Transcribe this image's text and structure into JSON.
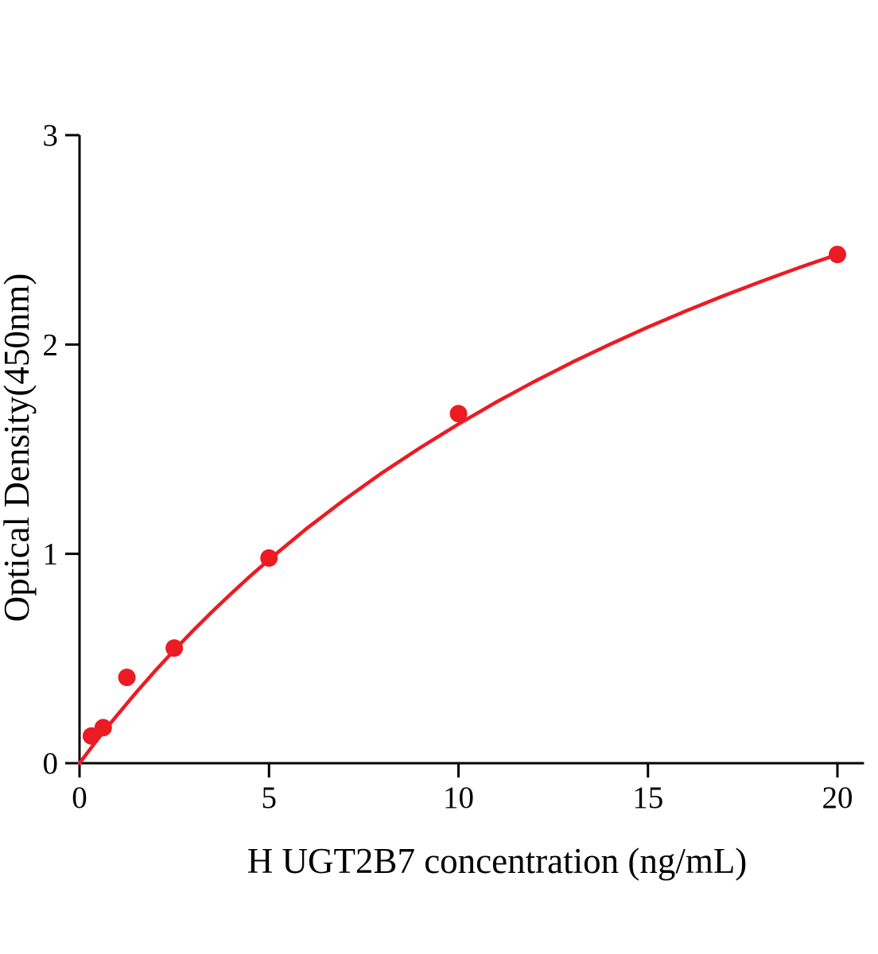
{
  "page": {
    "background": "#ffffff",
    "axis_color": "#000000",
    "accent_color": "#ec1b23"
  },
  "chart_data": {
    "type": "scatter",
    "title": "",
    "xlabel": "H UGT2B7 concentration (ng/mL)",
    "ylabel": "Optical Density(450nm)",
    "xlim": [
      0,
      20.7
    ],
    "ylim": [
      0,
      3
    ],
    "x_ticks": [
      0,
      5,
      10,
      15,
      20
    ],
    "y_ticks": [
      0,
      1,
      2,
      3
    ],
    "grid": false,
    "legend": "none",
    "series": [
      {
        "name": "fitted standard curve",
        "type": "line",
        "color": "#ec1b23",
        "x": [
          0,
          0.25,
          0.5,
          0.75,
          1,
          1.5,
          2,
          2.5,
          3,
          3.5,
          4,
          4.5,
          5,
          6,
          7,
          8,
          9,
          10,
          11,
          12,
          13,
          14,
          15,
          16,
          17,
          18,
          19,
          20
        ],
        "y": [
          0,
          0.06,
          0.119,
          0.176,
          0.231,
          0.339,
          0.442,
          0.54,
          0.634,
          0.724,
          0.81,
          0.893,
          0.972,
          1.122,
          1.26,
          1.389,
          1.508,
          1.62,
          1.725,
          1.823,
          1.915,
          2.001,
          2.083,
          2.16,
          2.233,
          2.302,
          2.368,
          2.43
        ]
      },
      {
        "name": "H UGT2B7 standard points",
        "type": "scatter",
        "color": "#ec1b23",
        "marker": "circle",
        "x": [
          0.313,
          0.625,
          1.25,
          2.5,
          5,
          10,
          20
        ],
        "y": [
          0.13,
          0.17,
          0.41,
          0.55,
          0.98,
          1.67,
          2.43
        ]
      }
    ]
  }
}
